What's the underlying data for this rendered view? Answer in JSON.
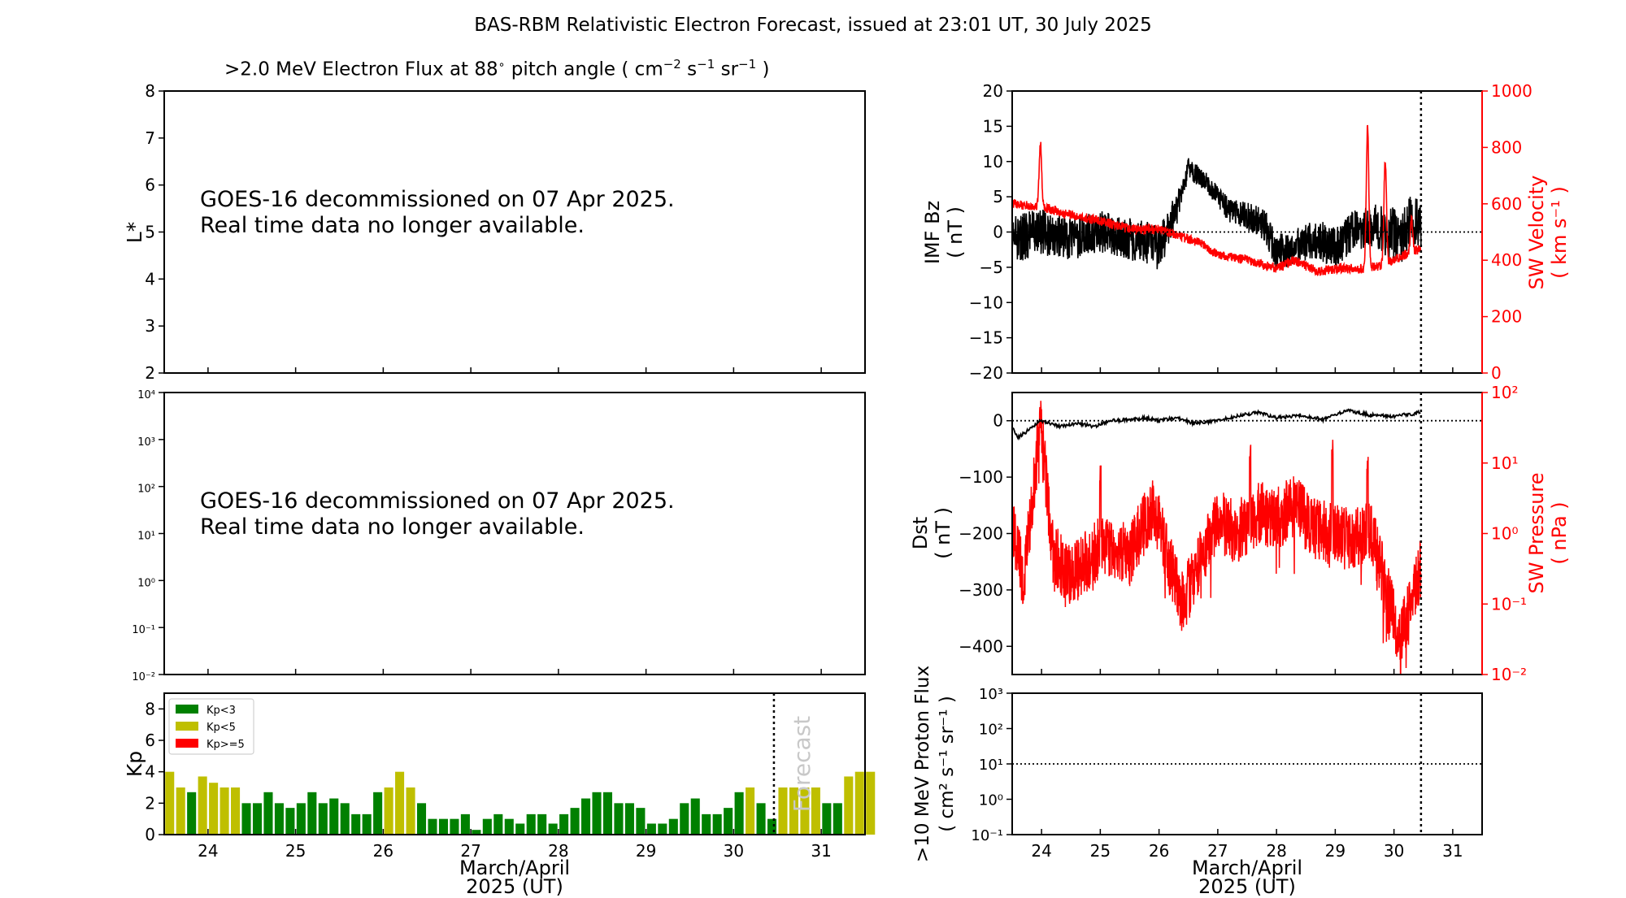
{
  "figure_title": "BAS-RBM Relativistic Electron Forecast, issued at 23:01 UT, 30 July 2025",
  "flux_title": {
    "main": ">2.0 MeV Electron Flux at 88",
    "deg": "∘",
    "mid": " pitch angle ( cm",
    "u1": "−2",
    "s": " s",
    "u2": "−1",
    "sr": " sr",
    "u3": "−1",
    "end": " )"
  },
  "notice": [
    "GOES-16 decommissioned on 07 Apr 2025.",
    "Real time data no longer available."
  ],
  "day_ticks": [
    "24",
    "25",
    "26",
    "27",
    "28",
    "29",
    "30",
    "31"
  ],
  "xlabel": [
    "March/April",
    "2025 (UT)"
  ],
  "forecast_label": "Forecast",
  "lstar": {
    "ylabel": "L*",
    "yticks": [
      "2",
      "3",
      "4",
      "5",
      "6",
      "7",
      "8"
    ]
  },
  "flux_axis": {
    "yticks": [
      "10⁻²",
      "10⁻¹",
      "10⁰",
      "10¹",
      "10²",
      "10³",
      "10⁴"
    ]
  },
  "colors": {
    "kp_low": "#008000",
    "kp_mid": "#bfbf00",
    "kp_high": "#ff0000",
    "red": "#ff0000",
    "black": "#000000"
  },
  "chart_data": [
    {
      "type": "bar",
      "title": "",
      "ylabel": "Kp",
      "ylim": [
        0,
        9
      ],
      "yticks": [
        "0",
        "2",
        "4",
        "6",
        "8"
      ],
      "legend": {
        "placement": "top-left",
        "entries": [
          "Kp<3",
          "Kp<5",
          "Kp>=5"
        ]
      },
      "x_start_day": 23.5,
      "bin_hours": 3,
      "values": [
        4,
        3,
        2.7,
        3.7,
        3.3,
        3,
        3,
        2,
        2,
        2.7,
        2,
        1.7,
        2,
        2.7,
        2,
        2.3,
        2,
        1.3,
        1.3,
        2.7,
        3,
        4,
        3,
        2,
        1,
        1,
        1,
        1.3,
        0.3,
        1,
        1.3,
        1,
        0.7,
        1.3,
        1.3,
        0.7,
        1.3,
        1.7,
        2.3,
        2.7,
        2.7,
        2,
        2,
        1.7,
        0.7,
        0.7,
        1,
        2,
        2.3,
        1.3,
        1.3,
        1.7,
        2.7,
        3,
        2,
        1,
        3,
        3,
        3,
        3,
        2,
        2,
        3.7,
        4,
        4
      ],
      "forecast_from_day": 30.46
    },
    {
      "type": "line",
      "series": [
        {
          "name": "",
          "axis": "IMF Bz ( nT )"
        },
        {
          "name": "",
          "axis": "SW Velocity ( km s⁻¹ )"
        }
      ],
      "ylabel_left": [
        "IMF Bz",
        "( nT )"
      ],
      "ylabel_right": [
        "SW Velocity",
        "( km s⁻¹ )"
      ],
      "ylim_left": [
        -20,
        20
      ],
      "ylim_right": [
        0,
        1000
      ],
      "yticks_left": [
        "−20",
        "−15",
        "−10",
        "−5",
        "0",
        "5",
        "10",
        "15",
        "20"
      ],
      "yticks_right": [
        "0",
        "200",
        "400",
        "600",
        "800",
        "1000"
      ],
      "bz_trend": [
        [
          23.5,
          -1
        ],
        [
          24.0,
          0
        ],
        [
          24.5,
          -1
        ],
        [
          25.0,
          0
        ],
        [
          25.5,
          -1
        ],
        [
          26.0,
          -2
        ],
        [
          26.3,
          3
        ],
        [
          26.5,
          9
        ],
        [
          26.8,
          7
        ],
        [
          27.0,
          5
        ],
        [
          27.2,
          3
        ],
        [
          27.6,
          2
        ],
        [
          27.8,
          1
        ],
        [
          28.0,
          -3
        ],
        [
          28.3,
          -2
        ],
        [
          28.6,
          -1
        ],
        [
          29.0,
          -2
        ],
        [
          29.3,
          0
        ],
        [
          29.6,
          1
        ],
        [
          29.9,
          0
        ],
        [
          30.1,
          -1
        ],
        [
          30.3,
          2
        ],
        [
          30.46,
          1
        ]
      ],
      "bz_noise": [
        [
          23.5,
          3.5
        ],
        [
          24.6,
          3
        ],
        [
          25.6,
          3
        ],
        [
          26.1,
          3.5
        ],
        [
          26.4,
          1.5
        ],
        [
          27.0,
          1.5
        ],
        [
          28.0,
          2.5
        ],
        [
          29.0,
          3
        ],
        [
          29.6,
          3
        ],
        [
          30.0,
          4
        ],
        [
          30.46,
          3.5
        ]
      ],
      "velocity_trend": [
        [
          23.5,
          600
        ],
        [
          24.0,
          590
        ],
        [
          24.5,
          560
        ],
        [
          25.0,
          540
        ],
        [
          25.5,
          510
        ],
        [
          26.0,
          510
        ],
        [
          26.3,
          490
        ],
        [
          26.7,
          460
        ],
        [
          27.0,
          420
        ],
        [
          27.5,
          400
        ],
        [
          28.0,
          370
        ],
        [
          28.3,
          400
        ],
        [
          28.7,
          360
        ],
        [
          29.0,
          370
        ],
        [
          29.5,
          370
        ],
        [
          29.8,
          380
        ],
        [
          30.0,
          400
        ],
        [
          30.2,
          420
        ],
        [
          30.46,
          440
        ]
      ],
      "velocity_peaks": [
        [
          23.98,
          820
        ],
        [
          29.55,
          870
        ],
        [
          29.85,
          760
        ],
        [
          30.3,
          540
        ]
      ],
      "forecast_from_day": 30.46
    },
    {
      "type": "line",
      "series": [
        {
          "name": "",
          "axis": "Dst ( nT )"
        },
        {
          "name": "",
          "axis": "SW Pressure ( nPa )"
        }
      ],
      "ylabel_left": [
        "Dst",
        "( nT )"
      ],
      "ylabel_right": [
        "SW Pressure",
        "( nPa )"
      ],
      "ylim_left": [
        -450,
        50
      ],
      "ylim_right_log10": [
        -2,
        2
      ],
      "yticks_left": [
        "−400",
        "−300",
        "−200",
        "−100",
        "0"
      ],
      "yticks_right": [
        "10⁻²",
        "10⁻¹",
        "10⁰",
        "10¹",
        "10²"
      ],
      "dst": [
        [
          23.5,
          -10
        ],
        [
          23.6,
          -30
        ],
        [
          23.8,
          -15
        ],
        [
          23.98,
          0
        ],
        [
          24.3,
          -10
        ],
        [
          24.6,
          -5
        ],
        [
          24.9,
          -10
        ],
        [
          25.2,
          0
        ],
        [
          25.5,
          2
        ],
        [
          25.8,
          5
        ],
        [
          26.0,
          0
        ],
        [
          26.3,
          5
        ],
        [
          26.6,
          -5
        ],
        [
          27.0,
          0
        ],
        [
          27.3,
          8
        ],
        [
          27.7,
          15
        ],
        [
          28.0,
          5
        ],
        [
          28.4,
          10
        ],
        [
          28.8,
          2
        ],
        [
          29.2,
          18
        ],
        [
          29.6,
          10
        ],
        [
          30.0,
          8
        ],
        [
          30.3,
          12
        ],
        [
          30.46,
          15
        ]
      ],
      "pressure_log10": [
        [
          23.5,
          0.1
        ],
        [
          23.7,
          -0.7
        ],
        [
          23.98,
          1.6
        ],
        [
          24.2,
          -0.3
        ],
        [
          24.5,
          -0.6
        ],
        [
          25.0,
          -0.2
        ],
        [
          25.5,
          -0.3
        ],
        [
          25.9,
          0.4
        ],
        [
          26.2,
          -0.5
        ],
        [
          26.4,
          -1.0
        ],
        [
          26.8,
          -0.2
        ],
        [
          27.0,
          0.2
        ],
        [
          27.3,
          0.0
        ],
        [
          27.7,
          0.3
        ],
        [
          28.0,
          0.2
        ],
        [
          28.3,
          0.4
        ],
        [
          28.6,
          0.1
        ],
        [
          28.9,
          0.0
        ],
        [
          29.3,
          -0.1
        ],
        [
          29.6,
          0.1
        ],
        [
          29.9,
          -0.9
        ],
        [
          30.1,
          -1.5
        ],
        [
          30.3,
          -1.0
        ],
        [
          30.46,
          -0.5
        ]
      ],
      "pressure_spikes": [
        [
          23.98,
          1.6
        ],
        [
          25.0,
          1.0
        ],
        [
          27.55,
          1.3
        ],
        [
          28.95,
          1.4
        ],
        [
          29.55,
          1.1
        ]
      ],
      "forecast_from_day": 30.46
    },
    {
      "type": "line",
      "title": "",
      "ylabel": [
        ">10 MeV Proton Flux",
        "( cm² s⁻¹ sr⁻¹ )"
      ],
      "ylim_log10": [
        -1,
        3
      ],
      "yticks": [
        "10⁻¹",
        "10⁰",
        "10¹",
        "10²",
        "10³"
      ],
      "threshold": 10,
      "forecast_from_day": 30.46
    }
  ]
}
